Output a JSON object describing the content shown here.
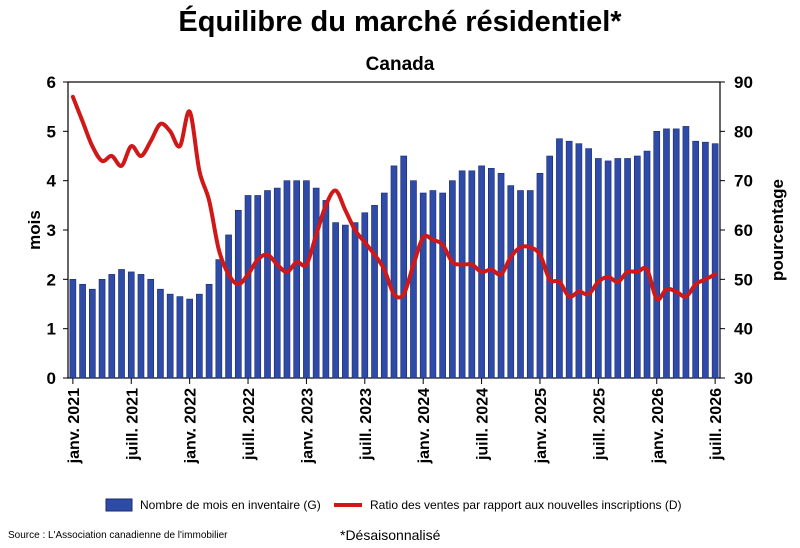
{
  "title": "Équilibre du marché résidentiel*",
  "subtitle": "Canada",
  "source": "Source : L'Association canadienne de l'immobilier",
  "note": "*Désaisonnalisé",
  "colors": {
    "bars": "#2f4ba8",
    "bar_edge": "#1b2a6b",
    "line": "#d01818"
  },
  "chart_data": {
    "type": "bar",
    "title": "Équilibre du marché résidentiel*",
    "subtitle": "Canada",
    "ylabel": "mois",
    "y2label": "pourcentage",
    "ylim": [
      0,
      6
    ],
    "y2lim": [
      30,
      90
    ],
    "yticks": [
      "0",
      "1",
      "2",
      "3",
      "4",
      "5",
      "6"
    ],
    "y2ticks": [
      "30",
      "40",
      "50",
      "60",
      "70",
      "80",
      "90"
    ],
    "xtick_labels": [
      "janv. 2021",
      "juill. 2021",
      "janv. 2022",
      "juill. 2022",
      "janv. 2023",
      "juill. 2023",
      "janv. 2024",
      "juill. 2024",
      "janv. 2025",
      "juill. 2025",
      "janv. 2026",
      "juill. 2026"
    ],
    "legend_position": "bottom",
    "series": [
      {
        "name": "Nombre de mois en inventaire (G)",
        "type": "bar",
        "axis": "left",
        "values": [
          2.0,
          1.9,
          1.8,
          2.0,
          2.1,
          2.2,
          2.15,
          2.1,
          2.0,
          1.8,
          1.7,
          1.65,
          1.6,
          1.7,
          1.9,
          2.4,
          2.9,
          3.4,
          3.7,
          3.7,
          3.8,
          3.85,
          4.0,
          4.0,
          4.0,
          3.85,
          3.6,
          3.15,
          3.1,
          3.15,
          3.35,
          3.5,
          3.75,
          4.3,
          4.5,
          4.0,
          3.75,
          3.8,
          3.75,
          4.0,
          4.2,
          4.2,
          4.3,
          4.25,
          4.15,
          3.9,
          3.8,
          3.8,
          4.15,
          4.5,
          4.85,
          4.8,
          4.75,
          4.65,
          4.45,
          4.4,
          4.45,
          4.45,
          4.5,
          4.6,
          5.0,
          5.05,
          5.05,
          5.1,
          4.8,
          4.78,
          4.75
        ]
      },
      {
        "name": "Ratio des ventes par rapport aux nouvelles inscriptions (D)",
        "type": "line",
        "axis": "right",
        "values": [
          87,
          82,
          77,
          74,
          75,
          73,
          77,
          75,
          78,
          81.5,
          80,
          77,
          84,
          72,
          66,
          56,
          51,
          49,
          51,
          54,
          55,
          53,
          51.5,
          53.5,
          53,
          59,
          65,
          68,
          64,
          60,
          57.5,
          55,
          52,
          47,
          47,
          53,
          58.5,
          58,
          57,
          53.5,
          53,
          53,
          51.5,
          52,
          51,
          54.5,
          56.5,
          56.5,
          55,
          50,
          49.5,
          46.5,
          47.5,
          47,
          49.5,
          50.5,
          49.5,
          51.5,
          51.5,
          52,
          46,
          48,
          47.5,
          46.5,
          49,
          50,
          51
        ]
      }
    ]
  }
}
